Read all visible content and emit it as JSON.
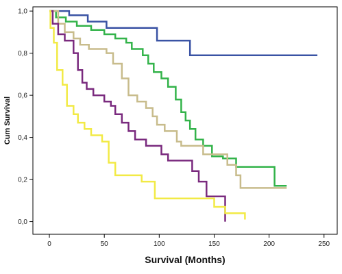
{
  "chart_data": {
    "type": "line",
    "step": true,
    "xlabel": "Survival (Months)",
    "ylabel": "Cum Survival",
    "xlim": [
      -15,
      262
    ],
    "ylim": [
      -0.06,
      1.02
    ],
    "x_ticks": [
      0,
      50,
      100,
      150,
      200,
      250
    ],
    "x_tick_labels": [
      "0",
      "50",
      "100",
      "150",
      "200",
      "250"
    ],
    "y_ticks": [
      0,
      0.2,
      0.4,
      0.6,
      0.8,
      1.0
    ],
    "y_tick_labels": [
      "0,0",
      "0,2",
      "0,4",
      "0,6",
      "0,8",
      "1,0"
    ],
    "grid": false,
    "legend": "none",
    "series": [
      {
        "color": "#3a53a4",
        "points": [
          [
            0,
            1.0
          ],
          [
            18,
            1.0
          ],
          [
            18,
            0.98
          ],
          [
            35,
            0.98
          ],
          [
            35,
            0.95
          ],
          [
            52,
            0.95
          ],
          [
            52,
            0.92
          ],
          [
            98,
            0.92
          ],
          [
            98,
            0.86
          ],
          [
            128,
            0.86
          ],
          [
            128,
            0.79
          ],
          [
            244,
            0.79
          ]
        ]
      },
      {
        "color": "#33b34a",
        "points": [
          [
            0,
            1.0
          ],
          [
            6,
            1.0
          ],
          [
            6,
            0.97
          ],
          [
            15,
            0.97
          ],
          [
            15,
            0.95
          ],
          [
            25,
            0.95
          ],
          [
            25,
            0.93
          ],
          [
            38,
            0.93
          ],
          [
            38,
            0.91
          ],
          [
            50,
            0.91
          ],
          [
            50,
            0.89
          ],
          [
            60,
            0.89
          ],
          [
            60,
            0.87
          ],
          [
            70,
            0.87
          ],
          [
            70,
            0.85
          ],
          [
            75,
            0.85
          ],
          [
            75,
            0.82
          ],
          [
            85,
            0.82
          ],
          [
            85,
            0.79
          ],
          [
            90,
            0.79
          ],
          [
            90,
            0.75
          ],
          [
            95,
            0.75
          ],
          [
            95,
            0.71
          ],
          [
            102,
            0.71
          ],
          [
            102,
            0.68
          ],
          [
            108,
            0.68
          ],
          [
            108,
            0.64
          ],
          [
            115,
            0.64
          ],
          [
            115,
            0.58
          ],
          [
            120,
            0.58
          ],
          [
            120,
            0.52
          ],
          [
            124,
            0.52
          ],
          [
            124,
            0.48
          ],
          [
            128,
            0.48
          ],
          [
            128,
            0.44
          ],
          [
            133,
            0.44
          ],
          [
            133,
            0.39
          ],
          [
            140,
            0.39
          ],
          [
            140,
            0.36
          ],
          [
            148,
            0.36
          ],
          [
            148,
            0.31
          ],
          [
            158,
            0.31
          ],
          [
            158,
            0.3
          ],
          [
            170,
            0.3
          ],
          [
            170,
            0.26
          ],
          [
            205,
            0.26
          ],
          [
            205,
            0.17
          ],
          [
            216,
            0.17
          ]
        ]
      },
      {
        "color": "#c8bc8c",
        "points": [
          [
            0,
            1.0
          ],
          [
            8,
            1.0
          ],
          [
            8,
            0.94
          ],
          [
            14,
            0.94
          ],
          [
            14,
            0.9
          ],
          [
            22,
            0.9
          ],
          [
            22,
            0.87
          ],
          [
            28,
            0.87
          ],
          [
            28,
            0.84
          ],
          [
            36,
            0.84
          ],
          [
            36,
            0.82
          ],
          [
            52,
            0.82
          ],
          [
            52,
            0.8
          ],
          [
            58,
            0.8
          ],
          [
            58,
            0.75
          ],
          [
            66,
            0.75
          ],
          [
            66,
            0.68
          ],
          [
            72,
            0.68
          ],
          [
            72,
            0.6
          ],
          [
            80,
            0.6
          ],
          [
            80,
            0.57
          ],
          [
            88,
            0.57
          ],
          [
            88,
            0.54
          ],
          [
            94,
            0.54
          ],
          [
            94,
            0.5
          ],
          [
            98,
            0.5
          ],
          [
            98,
            0.46
          ],
          [
            105,
            0.46
          ],
          [
            105,
            0.43
          ],
          [
            116,
            0.43
          ],
          [
            116,
            0.38
          ],
          [
            120,
            0.38
          ],
          [
            120,
            0.36
          ],
          [
            140,
            0.36
          ],
          [
            140,
            0.32
          ],
          [
            162,
            0.32
          ],
          [
            162,
            0.27
          ],
          [
            170,
            0.27
          ],
          [
            170,
            0.22
          ],
          [
            174,
            0.22
          ],
          [
            174,
            0.16
          ],
          [
            216,
            0.16
          ]
        ]
      },
      {
        "color": "#7a2a7e",
        "points": [
          [
            0,
            1.0
          ],
          [
            3,
            1.0
          ],
          [
            3,
            0.94
          ],
          [
            8,
            0.94
          ],
          [
            8,
            0.89
          ],
          [
            14,
            0.89
          ],
          [
            14,
            0.86
          ],
          [
            22,
            0.86
          ],
          [
            22,
            0.8
          ],
          [
            26,
            0.8
          ],
          [
            26,
            0.72
          ],
          [
            30,
            0.72
          ],
          [
            30,
            0.66
          ],
          [
            34,
            0.66
          ],
          [
            34,
            0.63
          ],
          [
            40,
            0.63
          ],
          [
            40,
            0.6
          ],
          [
            50,
            0.6
          ],
          [
            50,
            0.57
          ],
          [
            56,
            0.57
          ],
          [
            56,
            0.55
          ],
          [
            60,
            0.55
          ],
          [
            60,
            0.51
          ],
          [
            66,
            0.51
          ],
          [
            66,
            0.47
          ],
          [
            72,
            0.47
          ],
          [
            72,
            0.43
          ],
          [
            78,
            0.43
          ],
          [
            78,
            0.39
          ],
          [
            88,
            0.39
          ],
          [
            88,
            0.36
          ],
          [
            102,
            0.36
          ],
          [
            102,
            0.32
          ],
          [
            108,
            0.32
          ],
          [
            108,
            0.29
          ],
          [
            130,
            0.29
          ],
          [
            130,
            0.24
          ],
          [
            136,
            0.24
          ],
          [
            136,
            0.19
          ],
          [
            143,
            0.19
          ],
          [
            143,
            0.12
          ],
          [
            160,
            0.12
          ],
          [
            160,
            0.0
          ]
        ]
      },
      {
        "color": "#f2ea45",
        "points": [
          [
            0,
            1.0
          ],
          [
            1,
            1.0
          ],
          [
            1,
            0.92
          ],
          [
            4,
            0.92
          ],
          [
            4,
            0.85
          ],
          [
            7,
            0.85
          ],
          [
            7,
            0.72
          ],
          [
            12,
            0.72
          ],
          [
            12,
            0.65
          ],
          [
            16,
            0.65
          ],
          [
            16,
            0.55
          ],
          [
            22,
            0.55
          ],
          [
            22,
            0.51
          ],
          [
            26,
            0.51
          ],
          [
            26,
            0.47
          ],
          [
            32,
            0.47
          ],
          [
            32,
            0.44
          ],
          [
            38,
            0.44
          ],
          [
            38,
            0.41
          ],
          [
            48,
            0.41
          ],
          [
            48,
            0.38
          ],
          [
            54,
            0.38
          ],
          [
            54,
            0.28
          ],
          [
            60,
            0.28
          ],
          [
            60,
            0.22
          ],
          [
            84,
            0.22
          ],
          [
            84,
            0.19
          ],
          [
            96,
            0.19
          ],
          [
            96,
            0.11
          ],
          [
            150,
            0.11
          ],
          [
            150,
            0.07
          ],
          [
            160,
            0.07
          ],
          [
            160,
            0.04
          ],
          [
            178,
            0.04
          ],
          [
            178,
            0.01
          ]
        ]
      }
    ]
  }
}
